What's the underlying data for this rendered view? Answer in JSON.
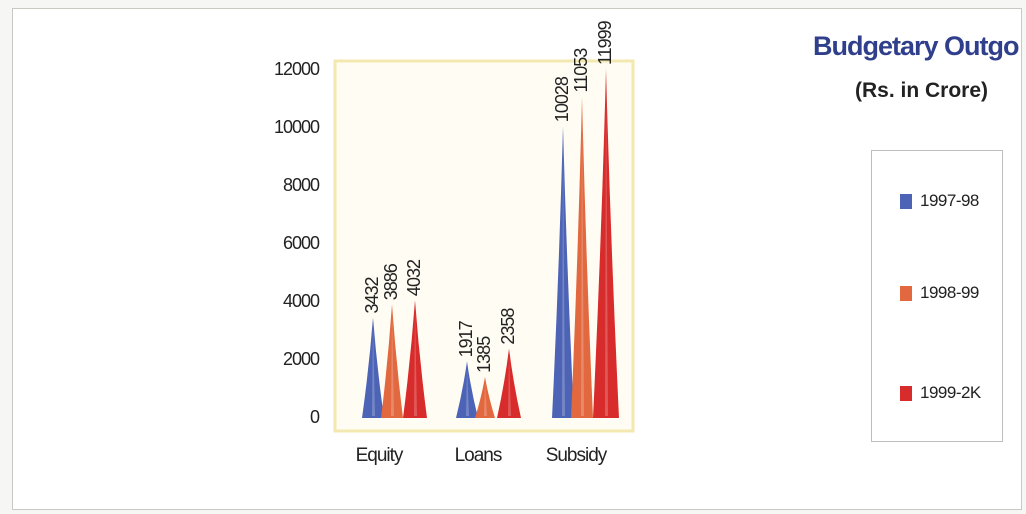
{
  "title": "Budgetary Outgo",
  "subtitle": "(Rs. in Crore)",
  "colors": {
    "title": "#2f3f8c",
    "plot_background": "#fffdf3",
    "plot_border": "#f3e9b0",
    "series": [
      "#4d64b6",
      "#e2683f",
      "#d82b2b"
    ]
  },
  "chart_data": {
    "type": "bar",
    "bar_shape": "cone",
    "categories": [
      "Equity",
      "Loans",
      "Subsidy"
    ],
    "series": [
      {
        "name": "1997-98",
        "values": [
          3432,
          1917,
          10028
        ]
      },
      {
        "name": "1998-99",
        "values": [
          3886,
          1385,
          11053
        ]
      },
      {
        "name": "1999-2K",
        "values": [
          4032,
          2358,
          11999
        ]
      }
    ],
    "value_labels": [
      [
        "3432",
        "1917",
        "10028"
      ],
      [
        "3886",
        "1385",
        "11053"
      ],
      [
        "4032",
        "2358",
        "11999"
      ]
    ],
    "y_ticks": [
      "0",
      "2000",
      "4000",
      "6000",
      "8000",
      "10000",
      "12000"
    ],
    "ylim": [
      0,
      12000
    ],
    "xlabel": "",
    "ylabel": "",
    "grid": false,
    "legend_position": "right"
  }
}
